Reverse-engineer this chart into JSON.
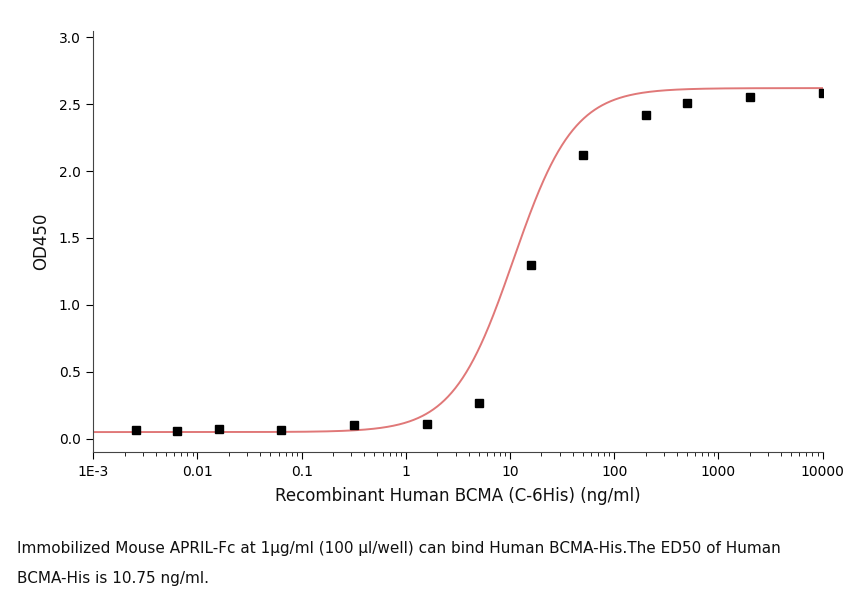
{
  "x_data": [
    0.00256,
    0.0064,
    0.016,
    0.064,
    0.32,
    1.6,
    5,
    16,
    50,
    200,
    500,
    2000,
    10000
  ],
  "y_data": [
    0.065,
    0.055,
    0.075,
    0.065,
    0.1,
    0.11,
    0.27,
    1.3,
    2.12,
    2.42,
    2.51,
    2.55,
    2.58
  ],
  "line_color": "#e07878",
  "marker_color": "#000000",
  "marker_size": 6,
  "xlabel": "Recombinant Human BCMA (C-6His) (ng/ml)",
  "ylabel": "OD450",
  "ylim": [
    -0.1,
    3.05
  ],
  "yticks": [
    0.0,
    0.5,
    1.0,
    1.5,
    2.0,
    2.5,
    3.0
  ],
  "caption_line1": "Immobilized Mouse APRIL-Fc at 1μg/ml (100 μl/well) can bind Human BCMA-His.The ED50 of Human",
  "caption_line2": "BCMA-His is 10.75 ng/ml.",
  "background_color": "#ffffff",
  "label_fontsize": 12,
  "caption_fontsize": 11,
  "ed50": 10.75
}
